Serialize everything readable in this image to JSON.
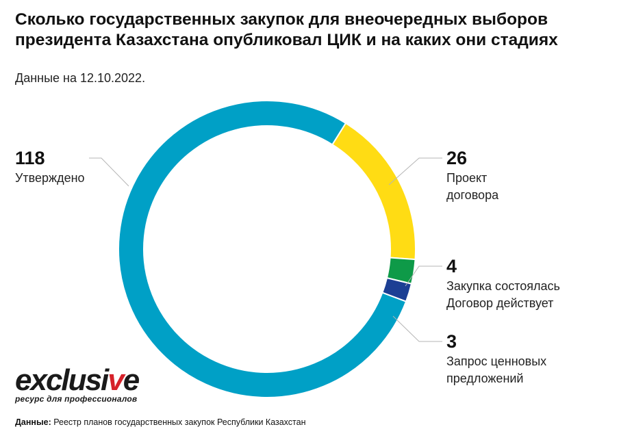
{
  "title": "Сколько государственных закупок для внеочередных выборов президента Казахстана опубликовал ЦИК и на каких они стадиях",
  "subtitle": "Данные на 12.10.2022.",
  "chart_data": {
    "type": "pie",
    "donut": true,
    "slices": [
      {
        "value": 118,
        "label_lines": [
          "Утверждено"
        ],
        "color": "#00a0c6"
      },
      {
        "value": 26,
        "label_lines": [
          "Проект",
          "договора"
        ],
        "color": "#ffdc14"
      },
      {
        "value": 4,
        "label_lines": [
          "Закупка состоялась",
          "Договор действует"
        ],
        "color": "#0e9a48"
      },
      {
        "value": 3,
        "label_lines": [
          "Запрос ценновых",
          "предложений"
        ],
        "color": "#1c3f94"
      }
    ]
  },
  "logo": {
    "word_main": "exclusi",
    "word_accent": "v",
    "word_end": "e",
    "tagline": "ресурс для профессионалов"
  },
  "source": {
    "label": "Данные:",
    "text": " Реестр планов государственных закупок Республики Казахстан"
  }
}
